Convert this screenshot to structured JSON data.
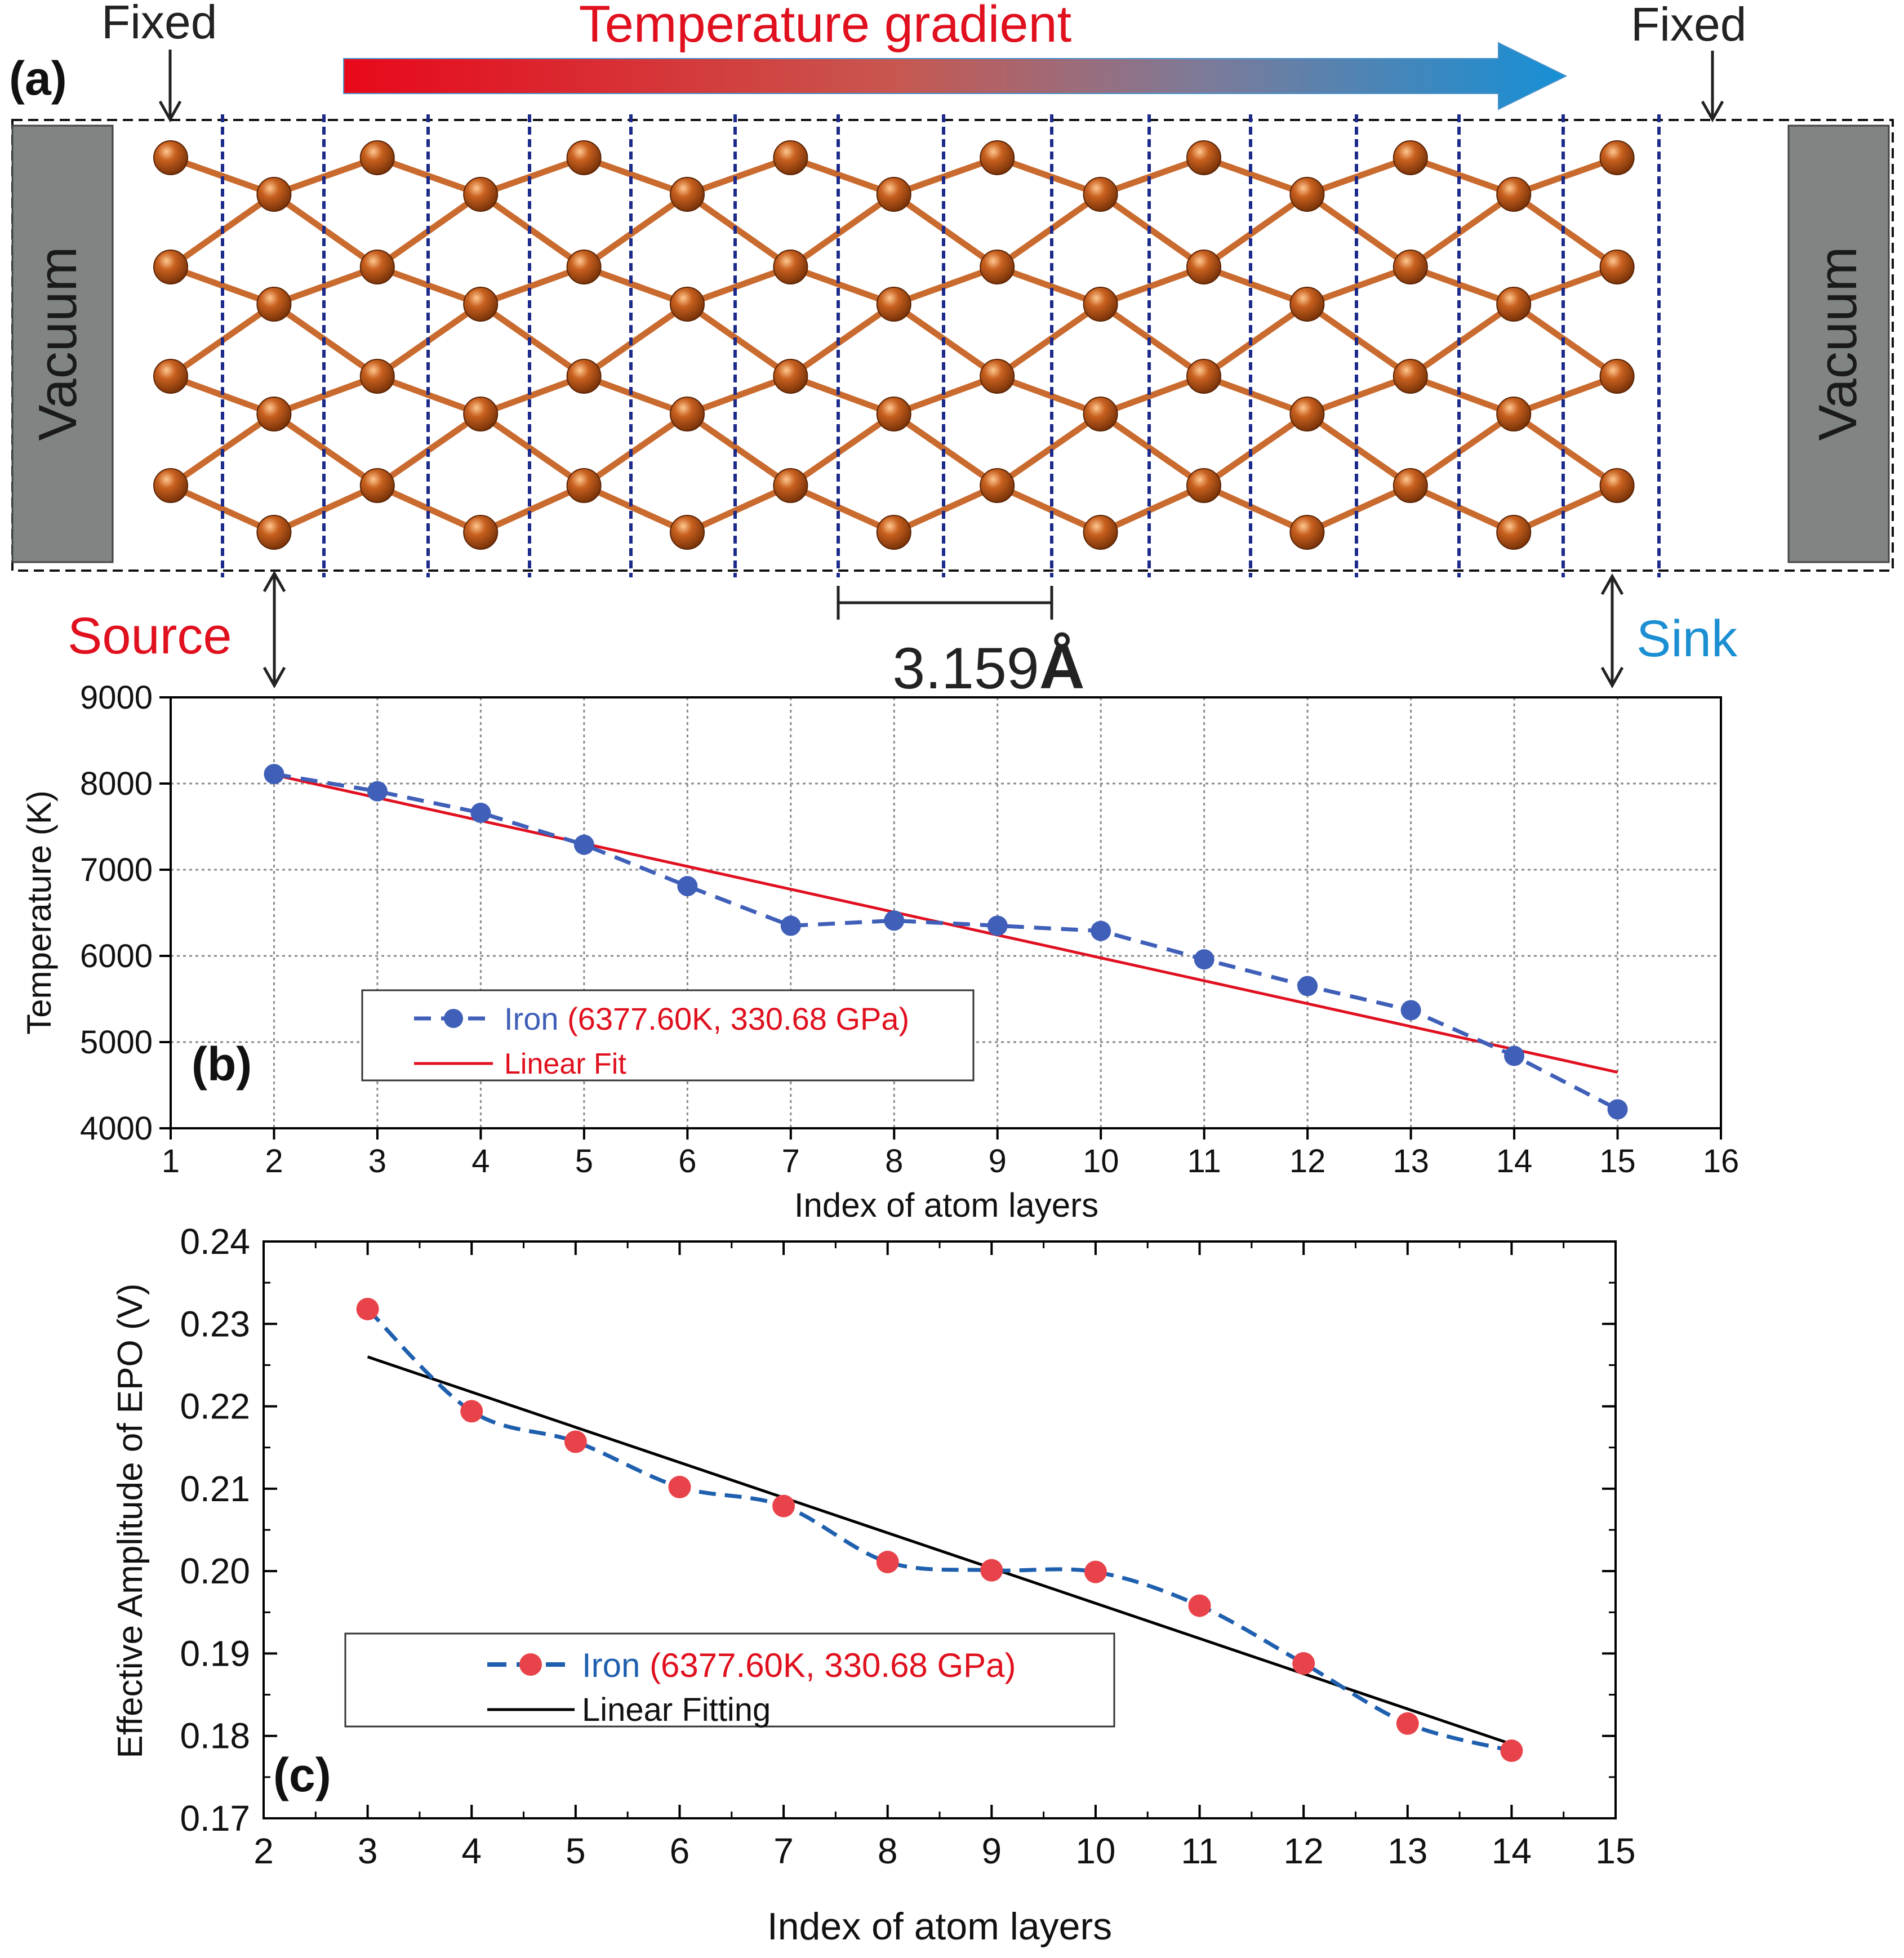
{
  "colors": {
    "red": "#e0101e",
    "blue": "#1b8fd2",
    "navy": "#1c2a8a",
    "atom": "#b4521a",
    "bond": "#c96a2e",
    "vacuum_fill": "#808483",
    "series_blue": "#3f5fb8",
    "series_red": "#e8434a",
    "fit_red": "#e01020",
    "fit_black": "#000000",
    "dash_blue": "#1e5fae"
  },
  "panel_a": {
    "label": "(a)",
    "fixed_left": "Fixed",
    "fixed_right": "Fixed",
    "gradient_title": "Temperature gradient",
    "vacuum_left": "Vacuum",
    "vacuum_right": "Vacuum",
    "source": "Source",
    "sink": "Sink",
    "scale": "3.159",
    "scale_unit": "Å"
  },
  "chart_data": [
    {
      "type": "line",
      "panel": "(b)",
      "title": "",
      "xlabel": "Index of  atom layers",
      "ylabel": "Temperature (K)",
      "xlim": [
        1,
        16
      ],
      "ylim": [
        4000,
        9000
      ],
      "xticks": [
        "1",
        "2",
        "3",
        "4",
        "5",
        "6",
        "7",
        "8",
        "9",
        "10",
        "11",
        "12",
        "13",
        "14",
        "15",
        "16"
      ],
      "yticks": [
        "4000",
        "5000",
        "6000",
        "7000",
        "8000",
        "9000"
      ],
      "grid": true,
      "legend_position": "lower-left",
      "series": [
        {
          "name": "Iron",
          "name_note": "(6377.60K, 330.68 GPa)",
          "style": "dashed-markers",
          "x": [
            2,
            3,
            4,
            5,
            6,
            7,
            8,
            9,
            10,
            11,
            12,
            13,
            14,
            15
          ],
          "values": [
            8110,
            7910,
            7660,
            7290,
            6810,
            6350,
            6410,
            6350,
            6290,
            5960,
            5650,
            5370,
            4840,
            4220
          ]
        },
        {
          "name": "Linear Fit",
          "style": "solid",
          "x": [
            2,
            15
          ],
          "values": [
            8100,
            4650
          ]
        }
      ]
    },
    {
      "type": "line",
      "panel": "(c)",
      "title": "",
      "xlabel": "Index of atom layers",
      "ylabel": "Effective Amplitude of EPO (V)",
      "xlim": [
        2,
        15
      ],
      "ylim": [
        0.17,
        0.24
      ],
      "xticks": [
        "2",
        "3",
        "4",
        "5",
        "6",
        "7",
        "8",
        "9",
        "10",
        "11",
        "12",
        "13",
        "14",
        "15"
      ],
      "yticks": [
        "0.17",
        "0.18",
        "0.19",
        "0.20",
        "0.21",
        "0.22",
        "0.23",
        "0.24"
      ],
      "grid": false,
      "legend_position": "lower-left",
      "series": [
        {
          "name": "Iron",
          "name_note": "(6377.60K, 330.68 GPa)",
          "style": "dashed-markers",
          "x": [
            3,
            4,
            5,
            6,
            7,
            8,
            9,
            10,
            11,
            12,
            13,
            14
          ],
          "values": [
            0.2318,
            0.2194,
            0.2157,
            0.2102,
            0.2079,
            0.2011,
            0.2001,
            0.1999,
            0.1958,
            0.1888,
            0.1815,
            0.1782
          ]
        },
        {
          "name": "Linear Fitting",
          "style": "solid",
          "x": [
            3,
            14
          ],
          "values": [
            0.226,
            0.179
          ]
        }
      ]
    }
  ]
}
